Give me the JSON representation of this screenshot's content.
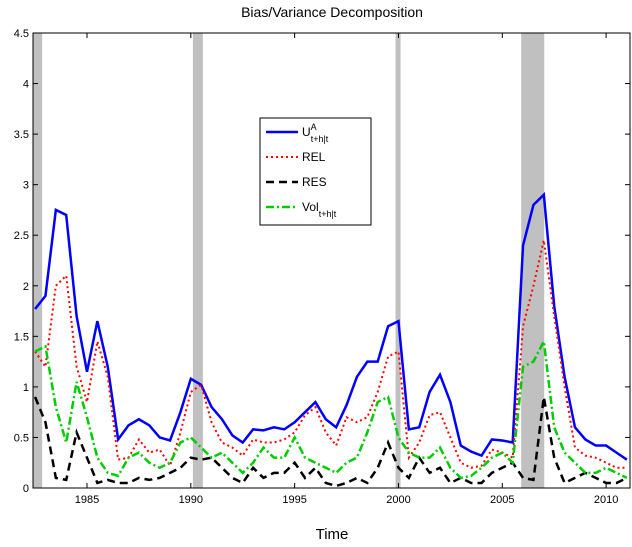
{
  "chart_data": {
    "type": "line",
    "title": "Bias/Variance Decomposition",
    "x_label": "Time",
    "xlim": [
      1982.4,
      2011.15
    ],
    "xticks": [
      1985,
      1990,
      1995,
      2000,
      2005,
      2010
    ],
    "ylim": [
      0,
      4.5
    ],
    "yticks": [
      0,
      0.5,
      1,
      1.5,
      2,
      2.5,
      3,
      3.5,
      4,
      4.5
    ],
    "grid": false,
    "shaded_regions": [
      [
        1982.4,
        1982.84
      ],
      [
        1990.1,
        1990.58
      ],
      [
        1999.86,
        2000.1
      ],
      [
        2005.91,
        2007.02
      ]
    ],
    "shade_color": "#c0c0c0",
    "x": [
      1982.5,
      1983,
      1983.5,
      1984,
      1984.5,
      1985,
      1985.5,
      1986,
      1986.5,
      1987,
      1987.5,
      1988,
      1988.5,
      1989,
      1989.5,
      1990,
      1990.5,
      1991,
      1991.5,
      1992,
      1992.5,
      1993,
      1993.5,
      1994,
      1994.5,
      1995,
      1995.5,
      1996,
      1996.5,
      1997,
      1997.5,
      1998,
      1998.5,
      1999,
      1999.5,
      2000,
      2000.5,
      2001,
      2001.5,
      2002,
      2002.5,
      2003,
      2003.5,
      2004,
      2004.5,
      2005,
      2005.5,
      2006,
      2006.5,
      2007,
      2007.5,
      2008,
      2008.5,
      2009,
      2009.5,
      2010,
      2010.5,
      2011
    ],
    "series": [
      {
        "name": "U",
        "name_sup": "A",
        "name_sub": "t+h|t",
        "color": "#0000ff",
        "linestyle": "solid",
        "linewidth": 2.5,
        "values": [
          1.77,
          1.9,
          2.75,
          2.7,
          1.7,
          1.15,
          1.65,
          1.2,
          0.48,
          0.62,
          0.68,
          0.62,
          0.5,
          0.47,
          0.75,
          1.08,
          1.02,
          0.8,
          0.68,
          0.52,
          0.45,
          0.58,
          0.57,
          0.6,
          0.58,
          0.65,
          0.75,
          0.85,
          0.68,
          0.6,
          0.82,
          1.1,
          1.25,
          1.25,
          1.6,
          1.65,
          0.58,
          0.6,
          0.95,
          1.12,
          0.85,
          0.42,
          0.36,
          0.32,
          0.48,
          0.47,
          0.45,
          2.4,
          2.8,
          2.9,
          1.8,
          1.1,
          0.6,
          0.48,
          0.42,
          0.42,
          0.35,
          0.28
        ]
      },
      {
        "name": "REL",
        "color": "#ff0000",
        "linestyle": "dotted",
        "linewidth": 2,
        "values": [
          1.35,
          1.2,
          2.0,
          2.1,
          1.2,
          0.85,
          1.45,
          1.1,
          0.28,
          0.3,
          0.48,
          0.35,
          0.38,
          0.22,
          0.55,
          0.95,
          1.02,
          0.65,
          0.45,
          0.4,
          0.32,
          0.48,
          0.45,
          0.45,
          0.48,
          0.55,
          0.72,
          0.8,
          0.55,
          0.42,
          0.7,
          0.65,
          0.7,
          0.95,
          1.3,
          1.35,
          0.3,
          0.45,
          0.72,
          0.75,
          0.5,
          0.25,
          0.2,
          0.22,
          0.38,
          0.35,
          0.3,
          1.6,
          2.0,
          2.45,
          1.7,
          1.0,
          0.4,
          0.32,
          0.3,
          0.25,
          0.2,
          0.2
        ]
      },
      {
        "name": "RES",
        "color": "#000000",
        "linestyle": "dashed",
        "linewidth": 2.5,
        "values": [
          0.9,
          0.65,
          0.1,
          0.08,
          0.55,
          0.3,
          0.05,
          0.08,
          0.05,
          0.05,
          0.1,
          0.08,
          0.1,
          0.15,
          0.2,
          0.3,
          0.28,
          0.3,
          0.2,
          0.1,
          0.05,
          0.2,
          0.1,
          0.15,
          0.15,
          0.25,
          0.1,
          0.2,
          0.05,
          0.02,
          0.05,
          0.1,
          0.05,
          0.2,
          0.45,
          0.2,
          0.1,
          0.3,
          0.15,
          0.2,
          0.05,
          0.1,
          0.05,
          0.05,
          0.15,
          0.2,
          0.25,
          0.1,
          0.08,
          0.9,
          0.3,
          0.05,
          0.1,
          0.15,
          0.1,
          0.05,
          0.05,
          0.1
        ]
      },
      {
        "name": "Vol",
        "name_sub": "t+h|t",
        "color": "#00cc00",
        "linestyle": "dashdot",
        "linewidth": 2.5,
        "values": [
          1.35,
          1.4,
          0.8,
          0.45,
          1.05,
          0.7,
          0.3,
          0.15,
          0.12,
          0.3,
          0.35,
          0.25,
          0.2,
          0.25,
          0.45,
          0.5,
          0.4,
          0.3,
          0.35,
          0.25,
          0.15,
          0.25,
          0.4,
          0.3,
          0.3,
          0.5,
          0.3,
          0.25,
          0.2,
          0.15,
          0.25,
          0.3,
          0.55,
          0.85,
          0.9,
          0.5,
          0.35,
          0.3,
          0.3,
          0.4,
          0.2,
          0.1,
          0.12,
          0.2,
          0.3,
          0.35,
          0.25,
          1.2,
          1.25,
          1.45,
          0.6,
          0.35,
          0.25,
          0.15,
          0.15,
          0.2,
          0.15,
          0.1
        ]
      }
    ]
  }
}
